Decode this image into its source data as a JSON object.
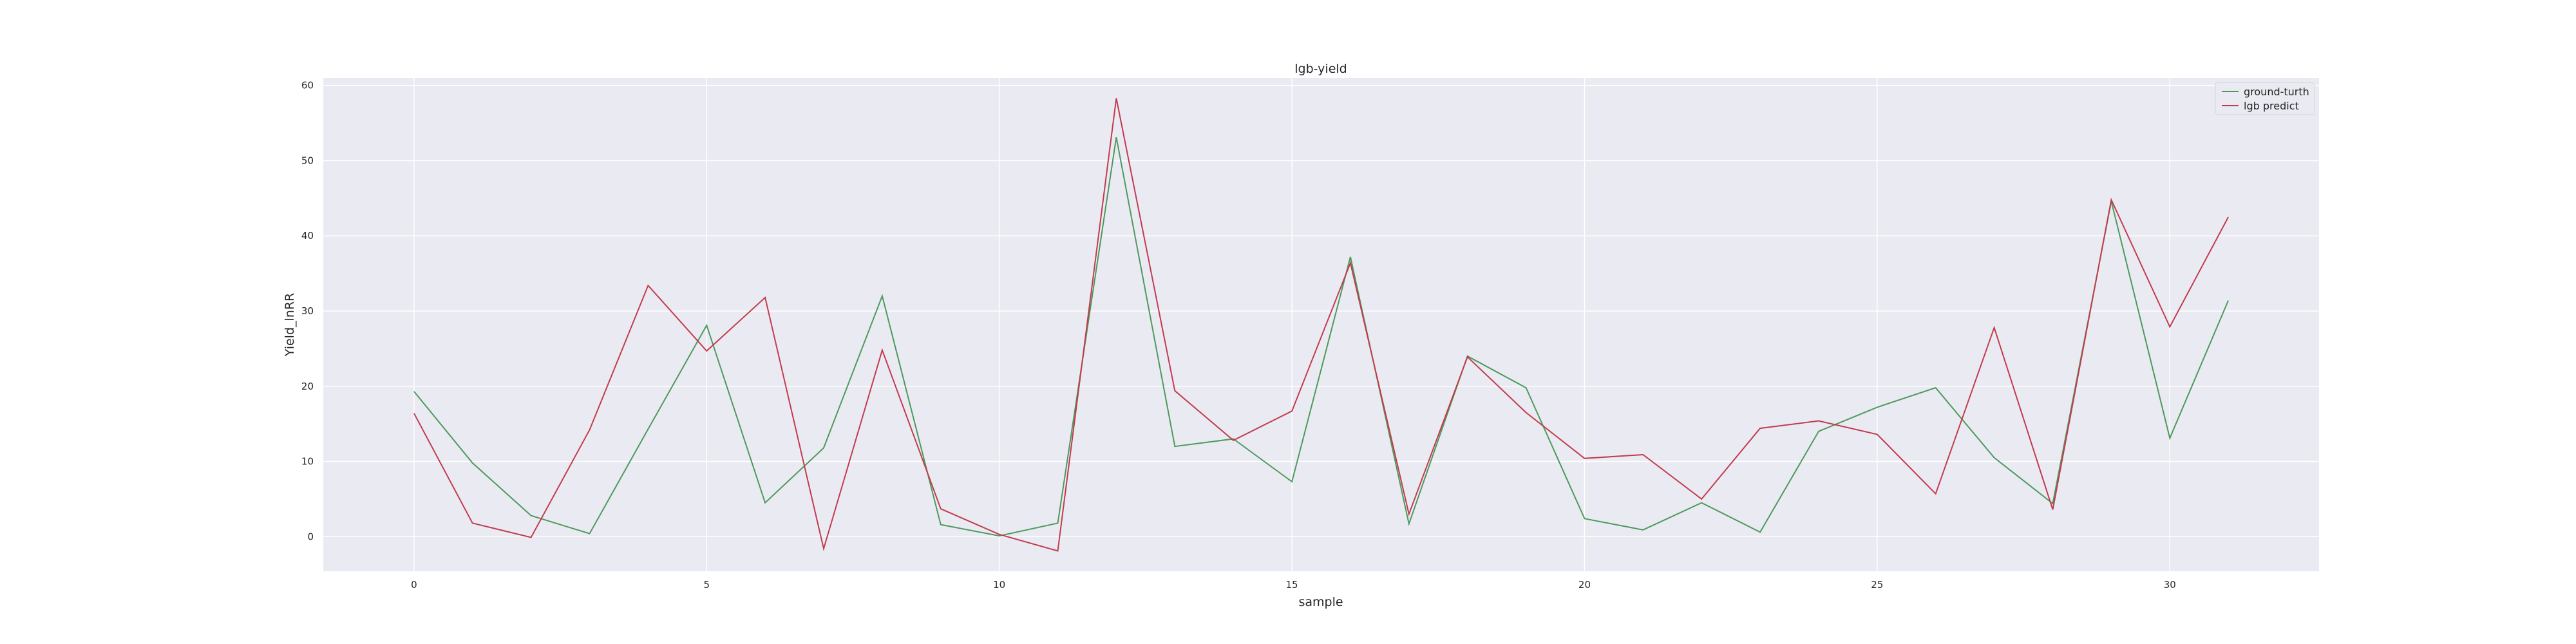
{
  "chart_data": {
    "type": "line",
    "title": "lgb-yield",
    "xlabel": "sample",
    "ylabel": "Yield_lnRR",
    "x": [
      0,
      1,
      2,
      3,
      4,
      5,
      6,
      7,
      8,
      9,
      10,
      11,
      12,
      13,
      14,
      15,
      16,
      17,
      18,
      19,
      20,
      21,
      22,
      23,
      24,
      25,
      26,
      27,
      28,
      29,
      30,
      31
    ],
    "xlim": [
      -1.55,
      32.55
    ],
    "ylim": [
      -4.6,
      61.0
    ],
    "xticks": [
      0,
      5,
      10,
      15,
      20,
      25,
      30
    ],
    "yticks": [
      0,
      10,
      20,
      30,
      40,
      50,
      60
    ],
    "grid": true,
    "legend_position": "top-right",
    "series": [
      {
        "name": "ground-turth",
        "color": "#4c9a5c",
        "values": [
          19.3,
          9.8,
          2.8,
          0.4,
          14.3,
          28.1,
          4.5,
          11.8,
          32.0,
          1.6,
          0.1,
          1.8,
          53.1,
          12.0,
          13.0,
          7.3,
          37.2,
          1.7,
          24.0,
          19.8,
          2.4,
          0.9,
          4.5,
          0.6,
          14.0,
          17.2,
          19.8,
          10.5,
          4.4,
          44.6,
          13.1,
          31.4
        ]
      },
      {
        "name": "lgb predict",
        "color": "#c23b4e",
        "values": [
          16.4,
          1.8,
          -0.1,
          14.2,
          33.4,
          24.7,
          31.8,
          -1.6,
          24.8,
          3.7,
          0.3,
          -1.9,
          58.3,
          19.4,
          12.8,
          16.7,
          36.4,
          3.0,
          23.9,
          16.5,
          10.4,
          10.9,
          5.0,
          14.4,
          15.4,
          13.6,
          5.7,
          27.8,
          3.6,
          44.8,
          27.9,
          42.5
        ]
      }
    ]
  }
}
